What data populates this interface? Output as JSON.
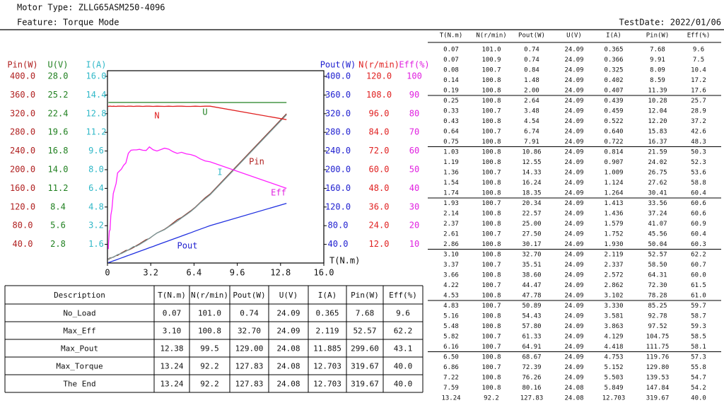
{
  "header": {
    "motor_type": "Motor Type: ZLLG65ASM250-4096",
    "feature": "Feature: Torque Mode",
    "test_date": "TestDate: 2022/01/06"
  },
  "chart_data": {
    "type": "line",
    "xlabel": "T(N.m)",
    "xlim": [
      0,
      16
    ],
    "xticks": [
      0,
      3.2,
      6.4,
      9.6,
      12.8,
      {
        "value": 16,
        "label": "16.0"
      }
    ],
    "x": [
      0.07,
      0.07,
      0.08,
      0.14,
      0.19,
      0.25,
      0.33,
      0.43,
      0.64,
      0.75,
      1.03,
      1.19,
      1.36,
      1.54,
      1.74,
      1.93,
      2.14,
      2.37,
      2.61,
      2.86,
      3.1,
      3.37,
      3.66,
      4.22,
      4.53,
      4.83,
      5.16,
      5.48,
      5.82,
      6.16,
      6.5,
      6.86,
      7.22,
      7.59,
      13.24
    ],
    "series": [
      {
        "name": "Pin",
        "axis_label": "Pin(W)",
        "color": "#b02020",
        "line_color": "#8a3a30",
        "ylim": [
          0,
          400
        ],
        "yticks": [
          {
            "value": 40,
            "label": "40.0"
          },
          {
            "value": 80,
            "label": "80.0"
          },
          {
            "value": 120,
            "label": "120.0"
          },
          {
            "value": 160,
            "label": "160.0"
          },
          {
            "value": 200,
            "label": "200.0"
          },
          {
            "value": 240,
            "label": "240.0"
          },
          {
            "value": 280,
            "label": "280.0"
          },
          {
            "value": 320,
            "label": "320.0"
          },
          {
            "value": 360,
            "label": "360.0"
          },
          {
            "value": 400,
            "label": "400.0"
          }
        ],
        "values": [
          7.68,
          9.91,
          8.09,
          8.59,
          11.39,
          10.28,
          12.04,
          12.2,
          15.83,
          16.37,
          21.59,
          24.02,
          26.75,
          27.62,
          30.41,
          33.56,
          37.24,
          41.07,
          45.56,
          50.04,
          52.57,
          58.5,
          64.31,
          72.3,
          78.28,
          85.25,
          92.78,
          97.52,
          104.75,
          111.75,
          119.76,
          129.8,
          139.53,
          147.84,
          319.67
        ]
      },
      {
        "name": "U",
        "axis_label": "U(V)",
        "color": "#208020",
        "line_color": "#208020",
        "ylim": [
          0,
          28
        ],
        "yticks": [
          2.8,
          5.6,
          8.4,
          11.2,
          {
            "value": 14,
            "label": "14.0"
          },
          16.8,
          19.6,
          22.4,
          25.2,
          {
            "value": 28,
            "label": "28.0"
          }
        ],
        "values": [
          24.09,
          24.09,
          24.09,
          24.09,
          24.09,
          24.09,
          24.09,
          24.09,
          24.09,
          24.09,
          24.09,
          24.09,
          24.09,
          24.09,
          24.09,
          24.09,
          24.09,
          24.09,
          24.09,
          24.09,
          24.09,
          24.09,
          24.09,
          24.09,
          24.09,
          24.09,
          24.09,
          24.09,
          24.09,
          24.09,
          24.09,
          24.09,
          24.09,
          24.08,
          24.08
        ]
      },
      {
        "name": "I",
        "axis_label": "I(A)",
        "color": "#30b8c8",
        "line_color": "#7a9a9a",
        "ylim": [
          0,
          16
        ],
        "yticks": [
          1.6,
          3.2,
          4.8,
          6.4,
          {
            "value": 8,
            "label": "8.0"
          },
          9.6,
          11.2,
          12.8,
          14.4,
          {
            "value": 16,
            "label": "16.0"
          }
        ],
        "values": [
          0.365,
          0.366,
          0.325,
          0.402,
          0.407,
          0.439,
          0.459,
          0.522,
          0.64,
          0.722,
          0.814,
          0.907,
          1.009,
          1.124,
          1.264,
          1.413,
          1.436,
          1.579,
          1.752,
          1.93,
          2.119,
          2.337,
          2.572,
          2.862,
          3.102,
          3.33,
          3.581,
          3.863,
          4.129,
          4.418,
          4.753,
          5.152,
          5.503,
          5.849,
          12.703
        ]
      },
      {
        "name": "Pout",
        "axis_label": "Pout(W)",
        "color": "#2020d0",
        "line_color": "#2030e0",
        "ylim": [
          0,
          400
        ],
        "yticks": [
          {
            "value": 40,
            "label": "40.0"
          },
          {
            "value": 80,
            "label": "80.0"
          },
          {
            "value": 120,
            "label": "120.0"
          },
          {
            "value": 160,
            "label": "160.0"
          },
          {
            "value": 200,
            "label": "200.0"
          },
          {
            "value": 240,
            "label": "240.0"
          },
          {
            "value": 280,
            "label": "280.0"
          },
          {
            "value": 320,
            "label": "320.0"
          },
          {
            "value": 360,
            "label": "360.0"
          },
          {
            "value": 400,
            "label": "400.0"
          }
        ],
        "values": [
          0.74,
          0.74,
          0.84,
          1.48,
          2.0,
          2.64,
          3.48,
          4.54,
          6.74,
          7.91,
          10.86,
          12.55,
          14.33,
          16.24,
          18.35,
          20.34,
          22.57,
          25.0,
          27.5,
          30.17,
          32.7,
          35.51,
          38.6,
          44.47,
          47.78,
          50.89,
          54.43,
          57.8,
          61.33,
          64.91,
          68.67,
          72.39,
          76.26,
          80.16,
          127.83
        ]
      },
      {
        "name": "N",
        "axis_label": "N(r/min)",
        "color": "#e02020",
        "line_color": "#e02020",
        "ylim": [
          0,
          120
        ],
        "yticks": [
          {
            "value": 12,
            "label": "12.0"
          },
          {
            "value": 24,
            "label": "24.0"
          },
          {
            "value": 36,
            "label": "36.0"
          },
          {
            "value": 48,
            "label": "48.0"
          },
          {
            "value": 60,
            "label": "60.0"
          },
          {
            "value": 72,
            "label": "72.0"
          },
          {
            "value": 84,
            "label": "84.0"
          },
          {
            "value": 96,
            "label": "96.0"
          },
          {
            "value": 108,
            "label": "108.0"
          },
          {
            "value": 120,
            "label": "120.0"
          }
        ],
        "values": [
          101.0,
          100.9,
          100.7,
          100.8,
          100.8,
          100.8,
          100.7,
          100.8,
          100.7,
          100.8,
          100.8,
          100.8,
          100.7,
          100.8,
          100.8,
          100.7,
          100.8,
          100.8,
          100.7,
          100.8,
          100.8,
          100.7,
          100.8,
          100.7,
          100.8,
          100.7,
          100.8,
          100.8,
          100.7,
          100.7,
          100.8,
          100.7,
          100.8,
          100.8,
          92.2
        ]
      },
      {
        "name": "Eff",
        "axis_label": "Eff(%)",
        "color": "#e020e0",
        "line_color": "#ff20ff",
        "ylim": [
          0,
          100
        ],
        "yticks": [
          10,
          20,
          30,
          40,
          50,
          60,
          70,
          80,
          90,
          100
        ],
        "values": [
          9.6,
          7.5,
          10.4,
          17.2,
          17.6,
          25.7,
          28.9,
          37.2,
          42.6,
          48.3,
          50.3,
          52.3,
          53.6,
          58.8,
          60.4,
          60.6,
          60.6,
          60.9,
          60.4,
          60.3,
          62.2,
          60.7,
          60.0,
          61.5,
          61.0,
          59.7,
          58.7,
          59.3,
          58.5,
          58.1,
          57.3,
          55.8,
          54.7,
          54.2,
          40.0
        ]
      }
    ]
  },
  "summary": {
    "columns": [
      "Description",
      "T(N.m)",
      "N(r/min)",
      "Pout(W)",
      "U(V)",
      "I(A)",
      "Pin(W)",
      "Eff(%)"
    ],
    "rows": [
      [
        "No_Load",
        "0.07",
        "101.0",
        "0.74",
        "24.09",
        "0.365",
        "7.68",
        "9.6"
      ],
      [
        "Max_Eff",
        "3.10",
        "100.8",
        "32.70",
        "24.09",
        "2.119",
        "52.57",
        "62.2"
      ],
      [
        "Max_Pout",
        "12.38",
        "99.5",
        "129.00",
        "24.08",
        "11.885",
        "299.60",
        "43.1"
      ],
      [
        "Max_Torque",
        "13.24",
        "92.2",
        "127.83",
        "24.08",
        "12.703",
        "319.67",
        "40.0"
      ],
      [
        "The End",
        "13.24",
        "92.2",
        "127.83",
        "24.08",
        "12.703",
        "319.67",
        "40.0"
      ]
    ]
  },
  "data_table": {
    "columns": [
      "T(N.m)",
      "N(r/min)",
      "Pout(W)",
      "U(V)",
      "I(A)",
      "Pin(W)",
      "Eff(%)"
    ],
    "rows": [
      [
        "0.07",
        "101.0",
        "0.74",
        "24.09",
        "0.365",
        "7.68",
        "9.6"
      ],
      [
        "0.07",
        "100.9",
        "0.74",
        "24.09",
        "0.366",
        "9.91",
        "7.5"
      ],
      [
        "0.08",
        "100.7",
        "0.84",
        "24.09",
        "0.325",
        "8.09",
        "10.4"
      ],
      [
        "0.14",
        "100.8",
        "1.48",
        "24.09",
        "0.402",
        "8.59",
        "17.2"
      ],
      [
        "0.19",
        "100.8",
        "2.00",
        "24.09",
        "0.407",
        "11.39",
        "17.6"
      ],
      [
        "0.25",
        "100.8",
        "2.64",
        "24.09",
        "0.439",
        "10.28",
        "25.7"
      ],
      [
        "0.33",
        "100.7",
        "3.48",
        "24.09",
        "0.459",
        "12.04",
        "28.9"
      ],
      [
        "0.43",
        "100.8",
        "4.54",
        "24.09",
        "0.522",
        "12.20",
        "37.2"
      ],
      [
        "0.64",
        "100.7",
        "6.74",
        "24.09",
        "0.640",
        "15.83",
        "42.6"
      ],
      [
        "0.75",
        "100.8",
        "7.91",
        "24.09",
        "0.722",
        "16.37",
        "48.3"
      ],
      [
        "1.03",
        "100.8",
        "10.86",
        "24.09",
        "0.814",
        "21.59",
        "50.3"
      ],
      [
        "1.19",
        "100.8",
        "12.55",
        "24.09",
        "0.907",
        "24.02",
        "52.3"
      ],
      [
        "1.36",
        "100.7",
        "14.33",
        "24.09",
        "1.009",
        "26.75",
        "53.6"
      ],
      [
        "1.54",
        "100.8",
        "16.24",
        "24.09",
        "1.124",
        "27.62",
        "58.8"
      ],
      [
        "1.74",
        "100.8",
        "18.35",
        "24.09",
        "1.264",
        "30.41",
        "60.4"
      ],
      [
        "1.93",
        "100.7",
        "20.34",
        "24.09",
        "1.413",
        "33.56",
        "60.6"
      ],
      [
        "2.14",
        "100.8",
        "22.57",
        "24.09",
        "1.436",
        "37.24",
        "60.6"
      ],
      [
        "2.37",
        "100.8",
        "25.00",
        "24.09",
        "1.579",
        "41.07",
        "60.9"
      ],
      [
        "2.61",
        "100.7",
        "27.50",
        "24.09",
        "1.752",
        "45.56",
        "60.4"
      ],
      [
        "2.86",
        "100.8",
        "30.17",
        "24.09",
        "1.930",
        "50.04",
        "60.3"
      ],
      [
        "3.10",
        "100.8",
        "32.70",
        "24.09",
        "2.119",
        "52.57",
        "62.2"
      ],
      [
        "3.37",
        "100.7",
        "35.51",
        "24.09",
        "2.337",
        "58.50",
        "60.7"
      ],
      [
        "3.66",
        "100.8",
        "38.60",
        "24.09",
        "2.572",
        "64.31",
        "60.0"
      ],
      [
        "4.22",
        "100.7",
        "44.47",
        "24.09",
        "2.862",
        "72.30",
        "61.5"
      ],
      [
        "4.53",
        "100.8",
        "47.78",
        "24.09",
        "3.102",
        "78.28",
        "61.0"
      ],
      [
        "4.83",
        "100.7",
        "50.89",
        "24.09",
        "3.330",
        "85.25",
        "59.7"
      ],
      [
        "5.16",
        "100.8",
        "54.43",
        "24.09",
        "3.581",
        "92.78",
        "58.7"
      ],
      [
        "5.48",
        "100.8",
        "57.80",
        "24.09",
        "3.863",
        "97.52",
        "59.3"
      ],
      [
        "5.82",
        "100.7",
        "61.33",
        "24.09",
        "4.129",
        "104.75",
        "58.5"
      ],
      [
        "6.16",
        "100.7",
        "64.91",
        "24.09",
        "4.418",
        "111.75",
        "58.1"
      ],
      [
        "6.50",
        "100.8",
        "68.67",
        "24.09",
        "4.753",
        "119.76",
        "57.3"
      ],
      [
        "6.86",
        "100.7",
        "72.39",
        "24.09",
        "5.152",
        "129.80",
        "55.8"
      ],
      [
        "7.22",
        "100.8",
        "76.26",
        "24.09",
        "5.503",
        "139.53",
        "54.7"
      ],
      [
        "7.59",
        "100.8",
        "80.16",
        "24.08",
        "5.849",
        "147.84",
        "54.2"
      ],
      [
        "13.24",
        "92.2",
        "127.83",
        "24.08",
        "12.703",
        "319.67",
        "40.0"
      ]
    ]
  }
}
